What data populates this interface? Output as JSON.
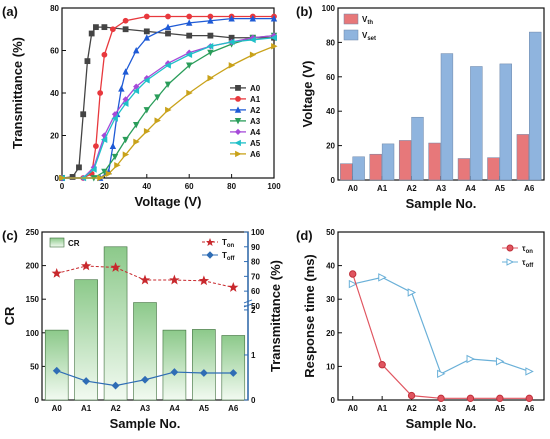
{
  "colors": {
    "A0": "#444444",
    "A1": "#e8383d",
    "A2": "#1f5bd6",
    "A3": "#2a9d5a",
    "A4": "#a64ad8",
    "A5": "#20c0c8",
    "A6": "#c9a21a",
    "vth": "#e7787a",
    "vset": "#8fb4de",
    "cr_bar": "#8cc98a",
    "ton": "#c8282d",
    "toff": "#2f6db5",
    "tau_on": "#e05560",
    "tau_off": "#6ab0d8"
  },
  "chart_data": [
    {
      "panel": "(a)",
      "type": "line",
      "xlabel": "Voltage (V)",
      "ylabel": "Transmittance (%)",
      "xlim": [
        0,
        100
      ],
      "ylim": [
        0,
        80
      ],
      "xticks": [
        "0",
        "20",
        "40",
        "60",
        "80",
        "100"
      ],
      "yticks": [
        "0",
        "20",
        "40",
        "60",
        "80"
      ],
      "legend_position": "right",
      "series": [
        {
          "name": "A0",
          "marker": "square",
          "x": [
            0,
            5,
            8,
            10,
            12,
            14,
            16,
            20,
            30,
            40,
            50,
            60,
            70,
            80,
            90,
            100
          ],
          "y": [
            0,
            0.5,
            5,
            30,
            55,
            68,
            71,
            71,
            70,
            69,
            68,
            67,
            67,
            66,
            66,
            66
          ]
        },
        {
          "name": "A1",
          "marker": "circle",
          "x": [
            0,
            10,
            14,
            16,
            18,
            20,
            24,
            30,
            40,
            50,
            60,
            70,
            80,
            90,
            100
          ],
          "y": [
            0,
            0,
            2,
            15,
            40,
            58,
            70,
            74,
            76,
            76,
            76,
            76,
            76,
            76,
            76
          ]
        },
        {
          "name": "A2",
          "marker": "triangle-up",
          "x": [
            0,
            18,
            22,
            24,
            26,
            28,
            30,
            35,
            40,
            50,
            60,
            70,
            80,
            90,
            100
          ],
          "y": [
            0,
            0,
            3,
            15,
            30,
            42,
            50,
            60,
            66,
            71,
            73,
            74,
            75,
            75,
            75
          ]
        },
        {
          "name": "A3",
          "marker": "triangle-down",
          "x": [
            0,
            15,
            20,
            25,
            30,
            35,
            40,
            45,
            50,
            60,
            70,
            80,
            90,
            100
          ],
          "y": [
            0,
            0,
            3,
            10,
            18,
            25,
            32,
            38,
            44,
            53,
            59,
            63,
            66,
            67
          ]
        },
        {
          "name": "A4",
          "marker": "diamond",
          "x": [
            0,
            10,
            15,
            20,
            25,
            30,
            35,
            40,
            50,
            60,
            70,
            80,
            90,
            100
          ],
          "y": [
            0,
            0,
            5,
            20,
            30,
            37,
            43,
            47,
            54,
            59,
            62,
            64,
            66,
            67
          ]
        },
        {
          "name": "A5",
          "marker": "triangle-left",
          "x": [
            0,
            10,
            15,
            20,
            25,
            30,
            35,
            40,
            50,
            60,
            70,
            80,
            90,
            100
          ],
          "y": [
            0,
            0,
            4,
            18,
            28,
            35,
            41,
            46,
            53,
            58,
            62,
            64,
            65,
            66
          ]
        },
        {
          "name": "A6",
          "marker": "triangle-right",
          "x": [
            0,
            18,
            22,
            26,
            30,
            35,
            40,
            45,
            50,
            60,
            70,
            80,
            90,
            100
          ],
          "y": [
            0,
            0,
            2,
            6,
            11,
            17,
            22,
            27,
            32,
            40,
            47,
            53,
            58,
            62
          ]
        }
      ]
    },
    {
      "panel": "(b)",
      "type": "bar",
      "xlabel": "Sample No.",
      "ylabel": "Voltage (V)",
      "ylim": [
        0,
        100
      ],
      "yticks": [
        "0",
        "20",
        "40",
        "60",
        "80",
        "100"
      ],
      "categories": [
        "A0",
        "A1",
        "A2",
        "A3",
        "A4",
        "A5",
        "A6"
      ],
      "legend_position": "top-left",
      "series": [
        {
          "name": "V",
          "sub": "th",
          "values": [
            9.5,
            15,
            23,
            21.5,
            12.5,
            13,
            26.5
          ]
        },
        {
          "name": "V",
          "sub": "set",
          "values": [
            13.5,
            21,
            36.5,
            73.5,
            66,
            67.5,
            86
          ]
        }
      ]
    },
    {
      "panel": "(c)",
      "type": "bar",
      "xlabel": "Sample No.",
      "ylabel": "CR",
      "ylabel_right": "Transmittance (%)",
      "ylim": [
        0,
        250
      ],
      "yticks": [
        "0",
        "50",
        "100",
        "150",
        "200",
        "250"
      ],
      "right_ticks_upper": [
        "50",
        "60",
        "70",
        "80",
        "90",
        "100"
      ],
      "right_ticks_lower": [
        "0",
        "1",
        "2"
      ],
      "categories": [
        "A0",
        "A1",
        "A2",
        "A3",
        "A4",
        "A5",
        "A6"
      ],
      "bars": {
        "name": "CR",
        "values": [
          104,
          179,
          228,
          145,
          104,
          105,
          96
        ]
      },
      "lines": [
        {
          "name": "T",
          "sub": "on",
          "values": [
            72,
            77,
            76,
            67.5,
            67.5,
            67,
            62.5
          ]
        },
        {
          "name": "T",
          "sub": "off",
          "values": [
            0.65,
            0.42,
            0.32,
            0.45,
            0.62,
            0.6,
            0.6
          ]
        }
      ]
    },
    {
      "panel": "(d)",
      "type": "line",
      "xlabel": "Sample No.",
      "ylabel": "Response time (ms)",
      "ylim": [
        0,
        50
      ],
      "yticks": [
        "0",
        "10",
        "20",
        "30",
        "40",
        "50"
      ],
      "categories": [
        "A0",
        "A1",
        "A2",
        "A3",
        "A4",
        "A5",
        "A6"
      ],
      "legend_position": "top-right",
      "series": [
        {
          "name": "τ",
          "sub": "on",
          "values": [
            37.5,
            10.5,
            1.3,
            0.5,
            0.5,
            0.5,
            0.5
          ]
        },
        {
          "name": "τ",
          "sub": "off",
          "values": [
            34.5,
            36.5,
            32,
            7.8,
            12.2,
            11.5,
            8.5
          ]
        }
      ]
    }
  ]
}
